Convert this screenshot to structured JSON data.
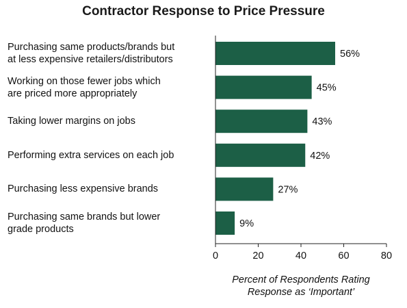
{
  "chart_data": {
    "type": "bar",
    "orientation": "horizontal",
    "title": "Contractor Response to Price Pressure",
    "categories": [
      "Purchasing same products/brands but\nat less expensive retailers/distributors",
      "Working on those fewer jobs which\nare priced more appropriately",
      "Taking lower margins on jobs",
      "Performing extra services on each job",
      "Purchasing less expensive brands",
      "Purchasing same brands but lower\ngrade products"
    ],
    "values": [
      56,
      45,
      43,
      42,
      27,
      9
    ],
    "value_labels": [
      "56%",
      "45%",
      "43%",
      "42%",
      "27%",
      "9%"
    ],
    "xlabel": "Percent of Respondents Rating\nResponse as ‘Important’",
    "ylabel": "",
    "xlim": [
      0,
      80
    ],
    "xticks": [
      "0",
      "20",
      "40",
      "60",
      "80"
    ],
    "grid": false,
    "bar_color": "#1c5f46"
  }
}
